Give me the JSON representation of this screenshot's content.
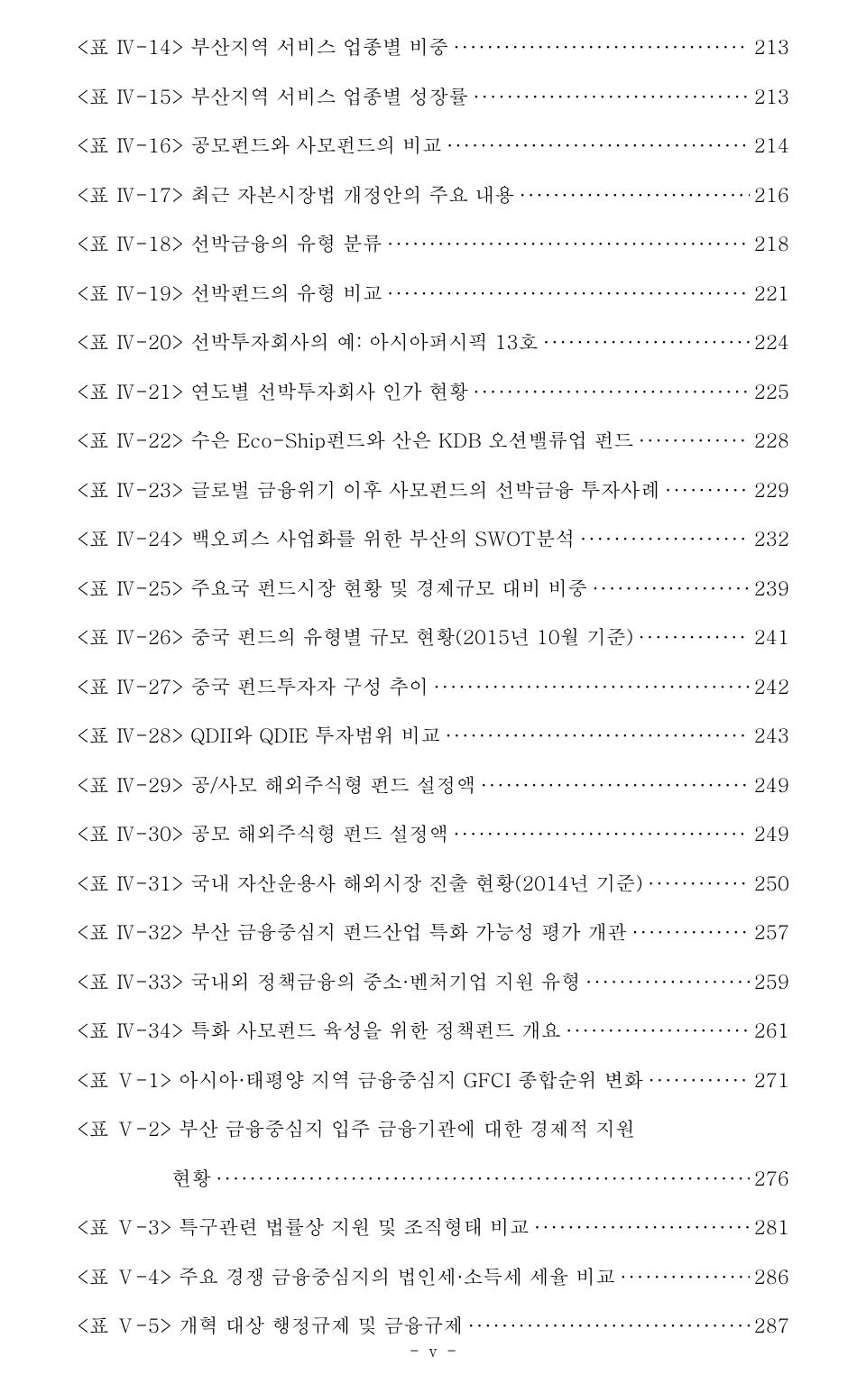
{
  "toc": [
    {
      "label": "<표 Ⅳ-14> 부산지역 서비스 업종별 비중",
      "page": "213"
    },
    {
      "label": "<표 Ⅳ-15> 부산지역 서비스 업종별 성장률",
      "page": "213"
    },
    {
      "label": "<표 Ⅳ-16> 공모펀드와 사모펀드의 비교",
      "page": "214"
    },
    {
      "label": "<표 Ⅳ-17> 최근 자본시장법 개정안의 주요 내용",
      "page": "216"
    },
    {
      "label": "<표 Ⅳ-18> 선박금융의 유형 분류",
      "page": "218"
    },
    {
      "label": "<표 Ⅳ-19> 선박펀드의 유형 비교",
      "page": "221"
    },
    {
      "label": "<표 Ⅳ-20> 선박투자회사의 예: 아시아퍼시픽 13호",
      "page": "224"
    },
    {
      "label": "<표 Ⅳ-21> 연도별 선박투자회사 인가 현황",
      "page": "225"
    },
    {
      "label": "<표 Ⅳ-22> 수은 Eco-Ship펀드와 산은 KDB 오션밸류업 펀드",
      "page": "228"
    },
    {
      "label": "<표 Ⅳ-23> 글로벌 금융위기 이후 사모펀드의 선박금융 투자사례",
      "page": "229"
    },
    {
      "label": "<표 Ⅳ-24> 백오피스 사업화를 위한 부산의 SWOT분석",
      "page": "232"
    },
    {
      "label": "<표 Ⅳ-25> 주요국 펀드시장 현황 및 경제규모 대비 비중",
      "page": "239"
    },
    {
      "label": "<표 Ⅳ-26> 중국 펀드의 유형별 규모 현황(2015년 10월 기준)",
      "page": "241"
    },
    {
      "label": "<표 Ⅳ-27> 중국 펀드투자자 구성 추이",
      "page": "242"
    },
    {
      "label": "<표 Ⅳ-28> QDII와 QDIE 투자범위 비교",
      "page": "243"
    },
    {
      "label": "<표 Ⅳ-29> 공/사모 해외주식형 펀드 설정액",
      "page": "249"
    },
    {
      "label": "<표 Ⅳ-30> 공모 해외주식형 펀드 설정액",
      "page": "249"
    },
    {
      "label": "<표 Ⅳ-31> 국내 자산운용사 해외시장 진출 현황(2014년 기준)",
      "page": "250"
    },
    {
      "label": "<표 Ⅳ-32> 부산 금융중심지 펀드산업 특화 가능성 평가 개관",
      "page": "257"
    },
    {
      "label": "<표 Ⅳ-33> 국내외 정책금융의 중소·벤처기업 지원 유형",
      "page": "259"
    },
    {
      "label": "<표 Ⅳ-34> 특화 사모펀드 육성을 위한 정책펀드 개요",
      "page": "261"
    },
    {
      "label": "<표 Ⅴ-1> 아시아·태평양 지역 금융중심지 GFCI 종합순위 변화",
      "page": "271"
    },
    {
      "label": "<표 Ⅴ-2> 부산 금융중심지 입주 금융기관에 대한 경제적 지원",
      "page": null,
      "continuation": "현황",
      "continuationPage": "276"
    },
    {
      "label": "<표 Ⅴ-3> 특구관련 법률상 지원 및 조직형태 비교",
      "page": "281"
    },
    {
      "label": "<표 Ⅴ-4> 주요 경쟁 금융중심지의 법인세·소득세 세율 비교",
      "page": "286"
    },
    {
      "label": "<표 Ⅴ-5> 개혁 대상 행정규제 및 금융규제",
      "page": "287"
    }
  ],
  "footer": "- ⅴ -"
}
